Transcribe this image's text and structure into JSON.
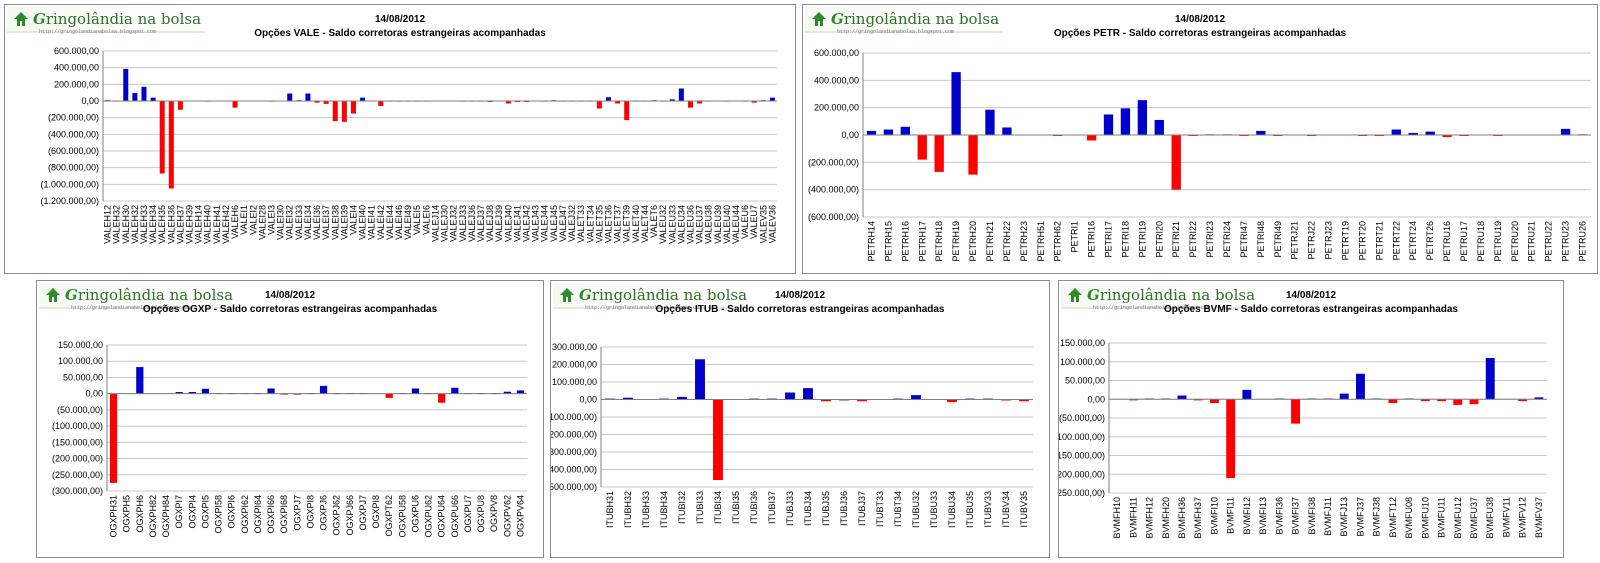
{
  "logo": {
    "text_prefix": "G",
    "text_rest": "ringolândia na bolsa",
    "url": "http://gringolandianabolsa.blogspot.com"
  },
  "colors": {
    "positive": "#0000cc",
    "negative": "#ff0000",
    "grid": "#c8c8c8",
    "axis": "#808080"
  },
  "chart_data": [
    {
      "type": "bar",
      "date": "14/08/2012",
      "title": "Opções VALE - Saldo corretoras estrangeiras acompanhadas",
      "ylim": [
        -1200000,
        600000
      ],
      "ystep": 200000,
      "ytick_labels": [
        "600.000,00",
        "400.000,00",
        "200.000,00",
        "0,00",
        "(200.000,00)",
        "(400.000,00)",
        "(600.000,00)",
        "(800.000,00)",
        "(1.000.000,00)",
        "(1.200.000,00)"
      ],
      "categories": [
        "VALEH12",
        "VALEH32",
        "VALEH30",
        "VALEH32",
        "VALEH33",
        "VALEH34",
        "VALEH35",
        "VALEH36",
        "VALEH37",
        "VALEH39",
        "VALEH14",
        "VALEH40",
        "VALEH41",
        "VALEH42",
        "VALEH6",
        "VALEI1",
        "VALEI2",
        "VALEI28",
        "VALEI3",
        "VALEI30",
        "VALEI32",
        "VALEI33",
        "VALEI34",
        "VALEI36",
        "VALEI37",
        "VALEI38",
        "VALEI39",
        "VALEI4",
        "VALEI40",
        "VALEI41",
        "VALEI42",
        "VALEI44",
        "VALEI46",
        "VALEI49",
        "VALEI5",
        "VALEI6",
        "VALEJ14",
        "VALEJ30",
        "VALEJ32",
        "VALEJ33",
        "VALEJ36",
        "VALEJ37",
        "VALEJ38",
        "VALEJ39",
        "VALEJ40",
        "VALEJ41",
        "VALEJ42",
        "VALEJ43",
        "VALEJ44",
        "VALEJ45",
        "VALEJ47",
        "VALEJ32",
        "VALET33",
        "VALET34",
        "VALET35",
        "VALET36",
        "VALET37",
        "VALET39",
        "VALET40",
        "VALET44",
        "VALET6",
        "VALEU32",
        "VALEU33",
        "VALEU34",
        "VALEU36",
        "VALEU37",
        "VALEU38",
        "VALEU39",
        "VALEU40",
        "VALEU44",
        "VALEU6",
        "VALEU7",
        "VALEV35",
        "VALEV36"
      ],
      "values": [
        10000,
        5000,
        385000,
        95000,
        170000,
        40000,
        -870000,
        -1050000,
        -105000,
        0,
        0,
        5000,
        0,
        0,
        -80000,
        0,
        0,
        0,
        5000,
        0,
        90000,
        10000,
        90000,
        -20000,
        -35000,
        -240000,
        -250000,
        -150000,
        40000,
        0,
        -60000,
        5000,
        5000,
        5000,
        5000,
        5000,
        0,
        0,
        0,
        5000,
        5000,
        5000,
        -10000,
        0,
        -30000,
        -5000,
        -10000,
        0,
        5000,
        10000,
        5000,
        5000,
        5000,
        5000,
        -90000,
        45000,
        -30000,
        -230000,
        5000,
        5000,
        10000,
        5000,
        20000,
        150000,
        -80000,
        -30000,
        5000,
        0,
        5000,
        0,
        5000,
        -20000,
        10000,
        40000
      ]
    },
    {
      "type": "bar",
      "date": "14/08/2012",
      "title": "Opções PETR - Saldo corretoras estrangeiras acompanhadas",
      "ylim": [
        -600000,
        600000
      ],
      "ystep": 200000,
      "ytick_labels": [
        "600.000,00",
        "400.000,00",
        "200.000,00",
        "0,00",
        "(200.000,00)",
        "(400.000,00)",
        "(600.000,00)"
      ],
      "categories": [
        "PETRH14",
        "PETRH15",
        "PETRH16",
        "PETRH17",
        "PETRH18",
        "PETRH19",
        "PETRH20",
        "PETRH21",
        "PETRH22",
        "PETRH23",
        "PETRH51",
        "PETRH62",
        "PETRI1",
        "PETRI16",
        "PETRI17",
        "PETRI18",
        "PETRI19",
        "PETRI20",
        "PETRI21",
        "PETRI22",
        "PETRI23",
        "PETRI24",
        "PETRI47",
        "PETRI48",
        "PETRI49",
        "PETRJ21",
        "PETRJ22",
        "PETRJ23",
        "PETRT19",
        "PETRT20",
        "PETRT21",
        "PETRT22",
        "PETRT24",
        "PETRT26",
        "PETRU16",
        "PETRU17",
        "PETRU18",
        "PETRU19",
        "PETRU20",
        "PETRU21",
        "PETRU22",
        "PETRU23",
        "PETRU26"
      ],
      "values": [
        30000,
        40000,
        60000,
        -180000,
        -270000,
        460000,
        -290000,
        185000,
        55000,
        0,
        0,
        -5000,
        0,
        -40000,
        150000,
        195000,
        255000,
        110000,
        -400000,
        -5000,
        5000,
        5000,
        -5000,
        30000,
        -5000,
        0,
        -5000,
        0,
        0,
        -5000,
        -5000,
        40000,
        15000,
        25000,
        -15000,
        -5000,
        0,
        -5000,
        0,
        0,
        0,
        45000,
        5000
      ]
    },
    {
      "type": "bar",
      "date": "14/08/2012",
      "title": "Opções OGXP - Saldo corretoras estrangeiras acompanhadas",
      "ylim": [
        -300000,
        150000
      ],
      "ystep": 50000,
      "ytick_labels": [
        "150.000,00",
        "100.000,00",
        "50.000,00",
        "0,00",
        "(50.000,00)",
        "(100.000,00)",
        "(150.000,00)",
        "(200.000,00)",
        "(250.000,00)",
        "(300.000,00)"
      ],
      "categories": [
        "OGXPH31",
        "OGXPH5",
        "OGXPH6",
        "OGXPH82",
        "OGXPH84",
        "OGXPI7",
        "OGXPI4",
        "OGXPI5",
        "OGXPI58",
        "OGXPI6",
        "OGXPI62",
        "OGXPI64",
        "OGXPI66",
        "OGXPI68",
        "OGXPJ7",
        "OGXPI8",
        "OGXPJ6",
        "OGXPJ62",
        "OGXPJ66",
        "OGXPJ7",
        "OGXPI8",
        "OGXPT62",
        "OGXPU58",
        "OGXPU6",
        "OGXPU62",
        "OGXPU64",
        "OGXPU66",
        "OGXPU7",
        "OGXPU8",
        "OGXPV8",
        "OGXPV62",
        "OGXPV64"
      ],
      "values": [
        -275000,
        0,
        82000,
        0,
        0,
        5000,
        5000,
        15000,
        2000,
        2000,
        2000,
        2000,
        16000,
        -3000,
        -3000,
        2000,
        24000,
        2000,
        2000,
        2000,
        0,
        -13000,
        2000,
        16000,
        2000,
        -28000,
        18000,
        2000,
        2000,
        2000,
        6000,
        10000
      ]
    },
    {
      "type": "bar",
      "date": "14/08/2012",
      "title": "Opções ITUB - Saldo corretoras estrangeiras acompanhadas",
      "ylim": [
        -500000,
        300000
      ],
      "ystep": 100000,
      "ytick_labels": [
        "300.000,00",
        "200.000,00",
        "100.000,00",
        "0,00",
        "(100.000,00)",
        "(200.000,00)",
        "(300.000,00)",
        "(400.000,00)",
        "(500.000,00)"
      ],
      "categories": [
        "ITUBH31",
        "ITUBH32",
        "ITUBH33",
        "ITUBH34",
        "ITUBI32",
        "ITUBI33",
        "ITUBI34",
        "ITUBI35",
        "ITUBI36",
        "ITUBI37",
        "ITUBJ33",
        "ITUBJ34",
        "ITUBJ35",
        "ITUBJ36",
        "ITUBJ37",
        "ITUBT33",
        "ITUBT34",
        "ITUBU32",
        "ITUBU33",
        "ITUBU34",
        "ITUBU35",
        "ITUBV33",
        "ITUBV34",
        "ITUBV35"
      ],
      "values": [
        5000,
        10000,
        0,
        5000,
        15000,
        230000,
        -460000,
        0,
        5000,
        5000,
        40000,
        65000,
        -10000,
        -5000,
        -10000,
        0,
        5000,
        25000,
        0,
        -15000,
        5000,
        5000,
        -5000,
        -10000
      ]
    },
    {
      "type": "bar",
      "date": "14/08/2012",
      "title": "Opções BVMF - Saldo corretoras estrangeiras acompanhadas",
      "ylim": [
        -250000,
        150000
      ],
      "ystep": 50000,
      "ytick_labels": [
        "150.000,00",
        "100.000,00",
        "50.000,00",
        "0,00",
        "(50.000,00)",
        "(100.000,00)",
        "(150.000,00)",
        "(200.000,00)",
        "(250.000,00)"
      ],
      "categories": [
        "BVMFH10",
        "BVMFH11",
        "BVMFH12",
        "BVMFH20",
        "BVMFH36",
        "BVMFH37",
        "BVMFI10",
        "BVMFI11",
        "BVMFI12",
        "BVMFI13",
        "BVMFI36",
        "BVMFI37",
        "BVMFI38",
        "BVMFJ11",
        "BVMFJ13",
        "BVMFJ37",
        "BVMFJ38",
        "BVMFT12",
        "BVMFU08",
        "BVMFU10",
        "BVMFU11",
        "BVMFU12",
        "BVMFU37",
        "BVMFU38",
        "BVMFV11",
        "BVMFV12",
        "BVMFV37"
      ],
      "values": [
        0,
        -3000,
        2000,
        2000,
        10000,
        -3000,
        -10000,
        -210000,
        25000,
        0,
        2000,
        -65000,
        2000,
        2000,
        15000,
        68000,
        2000,
        -10000,
        2000,
        -5000,
        -5000,
        -15000,
        -13000,
        110000,
        0,
        -5000,
        5000
      ]
    }
  ]
}
